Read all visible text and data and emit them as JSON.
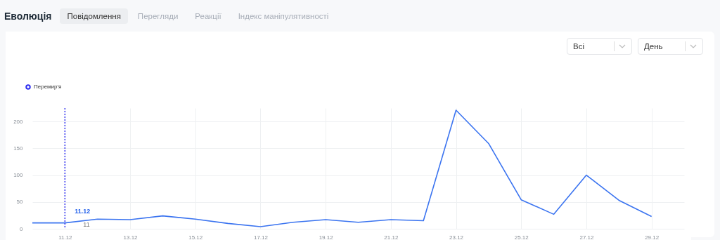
{
  "chart_data": {
    "type": "line",
    "title": "Еволюція",
    "x": [
      "--12-10",
      "--12-11",
      "--12-12",
      "--12-13",
      "--12-14",
      "--12-15",
      "--12-16",
      "--12-17",
      "--12-18",
      "--12-19",
      "--12-20",
      "--12-21",
      "--12-22",
      "--12-23",
      "--12-24",
      "--12-25",
      "--12-26",
      "--12-27",
      "--12-28",
      "--12-29"
    ],
    "series": [
      {
        "color": "#3b74f0",
        "values": [
          11,
          11,
          18,
          17,
          24,
          18,
          10,
          4,
          12,
          17,
          12,
          17,
          15,
          221,
          159,
          54,
          27,
          100,
          53,
          23
        ]
      }
    ],
    "xlim": [
      "--12-10",
      "--12-30"
    ],
    "xticks": [
      {
        "value": "--12-11",
        "label": "11.12"
      },
      {
        "value": "--12-13",
        "label": "13.12"
      },
      {
        "value": "--12-15",
        "label": "15.12"
      },
      {
        "value": "--12-17",
        "label": "17.12"
      },
      {
        "value": "--12-19",
        "label": "19.12"
      },
      {
        "value": "--12-21",
        "label": "21.12"
      },
      {
        "value": "--12-23",
        "label": "23.12"
      },
      {
        "value": "--12-25",
        "label": "25.12"
      },
      {
        "value": "--12-27",
        "label": "27.12"
      },
      {
        "value": "--12-29",
        "label": "29.12"
      }
    ],
    "ylim": [
      0,
      225
    ],
    "yticks": [
      0,
      50,
      100,
      150,
      200
    ],
    "grid": true,
    "legend": "top left",
    "marker": "none",
    "line_style": "solid",
    "ref_lines": [
      {
        "axis": "x",
        "value": "--12-11",
        "label": "Перемир'я",
        "color": "#2f2ff0",
        "line_style": "dotted"
      }
    ],
    "annotations": [
      "Повідомлення",
      "Перегляди",
      "Реакції",
      "Індекс маніпулятивності",
      "Всі",
      "День",
      {
        "text": "11.12",
        "x": "--12-11",
        "y": 11
      },
      {
        "text": "11",
        "x": "--12-11",
        "y": 11
      }
    ]
  }
}
